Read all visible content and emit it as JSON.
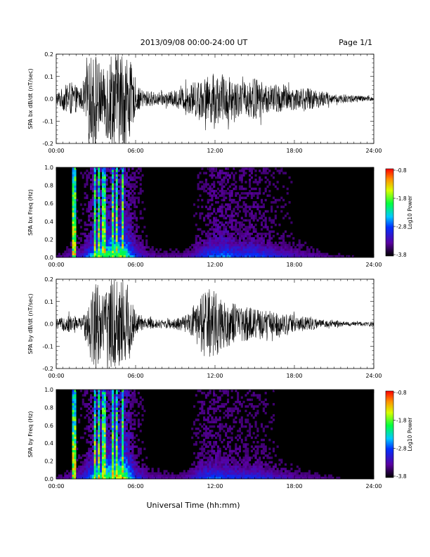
{
  "header": {
    "title": "2013/09/08  00:00-24:00 UT",
    "page": "Page 1/1"
  },
  "chart_data": [
    {
      "type": "line",
      "ylabel": "SPA bx dB/dt (nT/sec)",
      "xlim": [
        "00:00",
        "24:00"
      ],
      "xticks": [
        "00:00",
        "06:00",
        "12:00",
        "18:00",
        "24:00"
      ],
      "ylim": [
        -0.2,
        0.2
      ],
      "yticks": [
        "0.2",
        "0.1",
        "0.0",
        "-0.1",
        "-0.2"
      ],
      "series": [
        {
          "values": [
            [
              0,
              0.03
            ],
            [
              0.5,
              0.05
            ],
            [
              1.0,
              0.08
            ],
            [
              1.5,
              0.06
            ],
            [
              2.0,
              0.05
            ],
            [
              2.5,
              0.18
            ],
            [
              3.0,
              0.22
            ],
            [
              3.5,
              0.12
            ],
            [
              4.0,
              0.22
            ],
            [
              4.5,
              0.22
            ],
            [
              5.0,
              0.22
            ],
            [
              5.5,
              0.2
            ],
            [
              6.0,
              0.06
            ],
            [
              6.5,
              0.04
            ],
            [
              7.5,
              0.03
            ],
            [
              8.5,
              0.03
            ],
            [
              9.5,
              0.05
            ],
            [
              10.5,
              0.08
            ],
            [
              11.0,
              0.09
            ],
            [
              11.5,
              0.1
            ],
            [
              12.0,
              0.12
            ],
            [
              12.5,
              0.1
            ],
            [
              13.0,
              0.11
            ],
            [
              14.0,
              0.07
            ],
            [
              15.0,
              0.1
            ],
            [
              16.0,
              0.06
            ],
            [
              17.0,
              0.07
            ],
            [
              18.0,
              0.05
            ],
            [
              19.0,
              0.05
            ],
            [
              20.0,
              0.04
            ],
            [
              21.0,
              0.02
            ],
            [
              22.0,
              0.02
            ],
            [
              23.0,
              0.015
            ],
            [
              24.0,
              0.01
            ]
          ]
        }
      ]
    },
    {
      "type": "heatmap",
      "ylabel": "SPA bx Freq (Hz)",
      "xlim": [
        "00:00",
        "24:00"
      ],
      "xticks": [
        "00:00",
        "06:00",
        "12:00",
        "18:00",
        "24:00"
      ],
      "ylim": [
        0.0,
        1.0
      ],
      "yticks": [
        "1.0",
        "0.8",
        "0.6",
        "0.4",
        "0.2",
        "0.0"
      ],
      "colorbar": {
        "label": "Log10 Power",
        "range": [
          -3.8,
          -0.8
        ],
        "ticks": [
          "-0.8",
          "-1.8",
          "-2.8",
          "-3.8"
        ]
      },
      "strong_bursts": [
        1.35,
        2.9,
        3.2,
        3.6,
        4.3,
        4.6,
        5.0
      ],
      "activity": [
        [
          0,
          0.05
        ],
        [
          1,
          0.1
        ],
        [
          2,
          0.15
        ],
        [
          3,
          0.35
        ],
        [
          4,
          0.4
        ],
        [
          5,
          0.45
        ],
        [
          6,
          0.2
        ],
        [
          7,
          0.1
        ],
        [
          8,
          0.08
        ],
        [
          9,
          0.08
        ],
        [
          10,
          0.1
        ],
        [
          11,
          0.18
        ],
        [
          12,
          0.25
        ],
        [
          13,
          0.25
        ],
        [
          14,
          0.2
        ],
        [
          15,
          0.22
        ],
        [
          16,
          0.18
        ],
        [
          17,
          0.15
        ],
        [
          18,
          0.12
        ],
        [
          19,
          0.1
        ],
        [
          20,
          0.08
        ],
        [
          21,
          0.06
        ],
        [
          22,
          0.05
        ],
        [
          23,
          0.04
        ],
        [
          24,
          0.04
        ]
      ]
    },
    {
      "type": "line",
      "ylabel": "SPA by dB/dt (nT/sec)",
      "xlim": [
        "00:00",
        "24:00"
      ],
      "xticks": [
        "00:00",
        "06:00",
        "12:00",
        "18:00",
        "24:00"
      ],
      "ylim": [
        -0.2,
        0.2
      ],
      "yticks": [
        "0.2",
        "0.1",
        "0.0",
        "-0.1",
        "-0.2"
      ],
      "series": [
        {
          "values": [
            [
              0,
              0.02
            ],
            [
              0.5,
              0.03
            ],
            [
              1.0,
              0.04
            ],
            [
              1.5,
              0.03
            ],
            [
              2.0,
              0.03
            ],
            [
              2.5,
              0.14
            ],
            [
              3.0,
              0.22
            ],
            [
              3.5,
              0.12
            ],
            [
              4.0,
              0.2
            ],
            [
              4.5,
              0.22
            ],
            [
              5.0,
              0.22
            ],
            [
              5.5,
              0.18
            ],
            [
              6.0,
              0.05
            ],
            [
              6.5,
              0.03
            ],
            [
              7.5,
              0.02
            ],
            [
              8.5,
              0.02
            ],
            [
              9.5,
              0.03
            ],
            [
              10.5,
              0.06
            ],
            [
              11.0,
              0.14
            ],
            [
              11.5,
              0.16
            ],
            [
              12.0,
              0.15
            ],
            [
              12.5,
              0.12
            ],
            [
              13.0,
              0.1
            ],
            [
              14.0,
              0.08
            ],
            [
              15.0,
              0.07
            ],
            [
              16.0,
              0.06
            ],
            [
              17.0,
              0.05
            ],
            [
              18.0,
              0.04
            ],
            [
              19.0,
              0.03
            ],
            [
              20.0,
              0.02
            ],
            [
              21.0,
              0.015
            ],
            [
              22.0,
              0.01
            ],
            [
              23.0,
              0.01
            ],
            [
              24.0,
              0.01
            ]
          ]
        }
      ]
    },
    {
      "type": "heatmap",
      "ylabel": "SPA by Freq (Hz)",
      "xlim": [
        "00:00",
        "24:00"
      ],
      "xticks": [
        "00:00",
        "06:00",
        "12:00",
        "18:00",
        "24:00"
      ],
      "ylim": [
        0.0,
        1.0
      ],
      "yticks": [
        "1.0",
        "0.8",
        "0.6",
        "0.4",
        "0.2",
        "0.0"
      ],
      "colorbar": {
        "label": "Log10 Power",
        "range": [
          -3.8,
          -0.8
        ],
        "ticks": [
          "-0.8",
          "-1.8",
          "-2.8",
          "-3.8"
        ]
      },
      "strong_bursts": [
        1.35,
        2.9,
        3.2,
        3.6,
        4.3,
        4.6,
        5.0
      ],
      "activity": [
        [
          0,
          0.05
        ],
        [
          1,
          0.1
        ],
        [
          2,
          0.15
        ],
        [
          3,
          0.35
        ],
        [
          4,
          0.4
        ],
        [
          5,
          0.5
        ],
        [
          6,
          0.2
        ],
        [
          7,
          0.1
        ],
        [
          8,
          0.08
        ],
        [
          9,
          0.08
        ],
        [
          10,
          0.1
        ],
        [
          11,
          0.2
        ],
        [
          12,
          0.22
        ],
        [
          13,
          0.2
        ],
        [
          14,
          0.18
        ],
        [
          15,
          0.18
        ],
        [
          16,
          0.15
        ],
        [
          17,
          0.12
        ],
        [
          18,
          0.1
        ],
        [
          19,
          0.08
        ],
        [
          20,
          0.07
        ],
        [
          21,
          0.05
        ],
        [
          22,
          0.04
        ],
        [
          23,
          0.03
        ],
        [
          24,
          0.03
        ]
      ]
    }
  ],
  "xaxis_title": "Universal Time (hh:mm)",
  "colors": {
    "background": "#ffffff",
    "axis": "#000000",
    "spectrogram_bg": "#000000"
  }
}
